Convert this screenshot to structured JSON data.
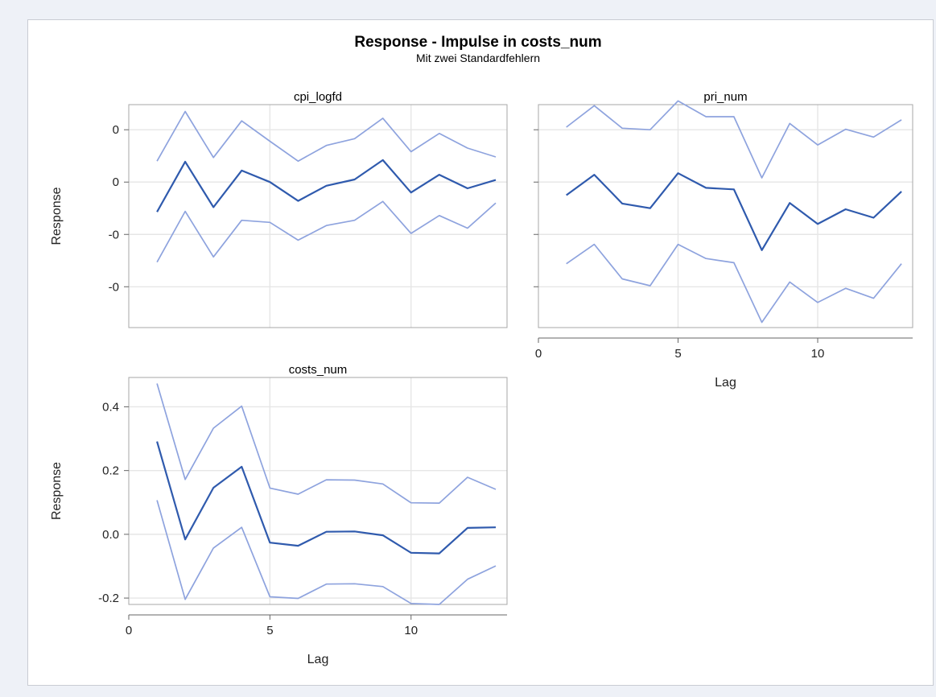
{
  "chart_data": {
    "type": "line",
    "title": "Response - Impulse in costs_num",
    "subtitle": "Mit zwei Standardfehlern",
    "colors": {
      "response": "#2f5aad",
      "bounds": "#8ea3de",
      "grid": "#e6e6e6",
      "frame": "#a7a7a7"
    },
    "panels": [
      {
        "title": "cpi_logfd",
        "ylabel": "Response",
        "xlabel": "",
        "xlim": [
          0,
          13.4
        ],
        "ylim": [
          -0.278,
          0.148
        ],
        "yticks": [
          0.1,
          0.0,
          -0.1,
          -0.2
        ],
        "ytick_labels": [
          "0",
          "0",
          "-0",
          "-0"
        ],
        "xticks": [],
        "xtick_labels": [],
        "grid_x": [
          5,
          10
        ],
        "x": [
          1,
          2,
          3,
          4,
          5,
          6,
          7,
          8,
          9,
          10,
          11,
          12,
          13
        ],
        "series": [
          {
            "role": "upper",
            "values": [
              0.04,
              0.135,
              0.047,
              0.117,
              0.078,
              0.04,
              0.07,
              0.083,
              0.122,
              0.058,
              0.093,
              0.065,
              0.048
            ]
          },
          {
            "role": "response",
            "values": [
              -0.057,
              0.039,
              -0.048,
              0.022,
              0.0,
              -0.036,
              -0.007,
              0.005,
              0.042,
              -0.02,
              0.014,
              -0.012,
              0.004
            ]
          },
          {
            "role": "lower",
            "values": [
              -0.153,
              -0.056,
              -0.143,
              -0.073,
              -0.077,
              -0.111,
              -0.083,
              -0.073,
              -0.037,
              -0.098,
              -0.064,
              -0.088,
              -0.04
            ]
          }
        ]
      },
      {
        "title": "pri_num",
        "ylabel": "",
        "xlabel": "Lag",
        "xlim": [
          0,
          13.4
        ],
        "ylim": [
          -0.278,
          0.148
        ],
        "yticks": [
          0.1,
          0.0,
          -0.1,
          -0.2
        ],
        "ytick_labels": [],
        "xticks": [
          0,
          5,
          10
        ],
        "xtick_labels": [
          "0",
          "5",
          "10"
        ],
        "grid_x": [
          5,
          10
        ],
        "x": [
          1,
          2,
          3,
          4,
          5,
          6,
          7,
          8,
          9,
          10,
          11,
          12,
          13
        ],
        "series": [
          {
            "role": "upper",
            "values": [
              0.105,
              0.146,
              0.103,
              0.1,
              0.155,
              0.125,
              0.125,
              0.008,
              0.112,
              0.071,
              0.101,
              0.086,
              0.119
            ]
          },
          {
            "role": "response",
            "values": [
              -0.025,
              0.014,
              -0.041,
              -0.05,
              0.017,
              -0.011,
              -0.014,
              -0.13,
              -0.04,
              -0.08,
              -0.052,
              -0.068,
              -0.018
            ]
          },
          {
            "role": "lower",
            "values": [
              -0.156,
              -0.119,
              -0.185,
              -0.198,
              -0.119,
              -0.146,
              -0.154,
              -0.268,
              -0.191,
              -0.23,
              -0.203,
              -0.222,
              -0.156
            ]
          }
        ]
      },
      {
        "title": "costs_num",
        "ylabel": "Response",
        "xlabel": "Lag",
        "xlim": [
          0,
          13.4
        ],
        "ylim": [
          -0.22,
          0.492
        ],
        "yticks": [
          0.4,
          0.2,
          0.0,
          -0.2
        ],
        "ytick_labels": [
          "0.4",
          "0.2",
          "0.0",
          "-0.2"
        ],
        "xticks": [
          0,
          5,
          10
        ],
        "xtick_labels": [
          "0",
          "5",
          "10"
        ],
        "grid_x": [
          5,
          10
        ],
        "x": [
          1,
          2,
          3,
          4,
          5,
          6,
          7,
          8,
          9,
          10,
          11,
          12,
          13
        ],
        "series": [
          {
            "role": "upper",
            "values": [
              0.473,
              0.172,
              0.333,
              0.402,
              0.145,
              0.126,
              0.171,
              0.17,
              0.158,
              0.099,
              0.098,
              0.179,
              0.141
            ]
          },
          {
            "role": "response",
            "values": [
              0.291,
              -0.016,
              0.146,
              0.212,
              -0.026,
              -0.036,
              0.008,
              0.009,
              -0.003,
              -0.058,
              -0.06,
              0.02,
              0.022
            ]
          },
          {
            "role": "lower",
            "values": [
              0.107,
              -0.204,
              -0.043,
              0.022,
              -0.196,
              -0.201,
              -0.156,
              -0.155,
              -0.164,
              -0.217,
              -0.22,
              -0.141,
              -0.099
            ]
          }
        ]
      }
    ]
  }
}
